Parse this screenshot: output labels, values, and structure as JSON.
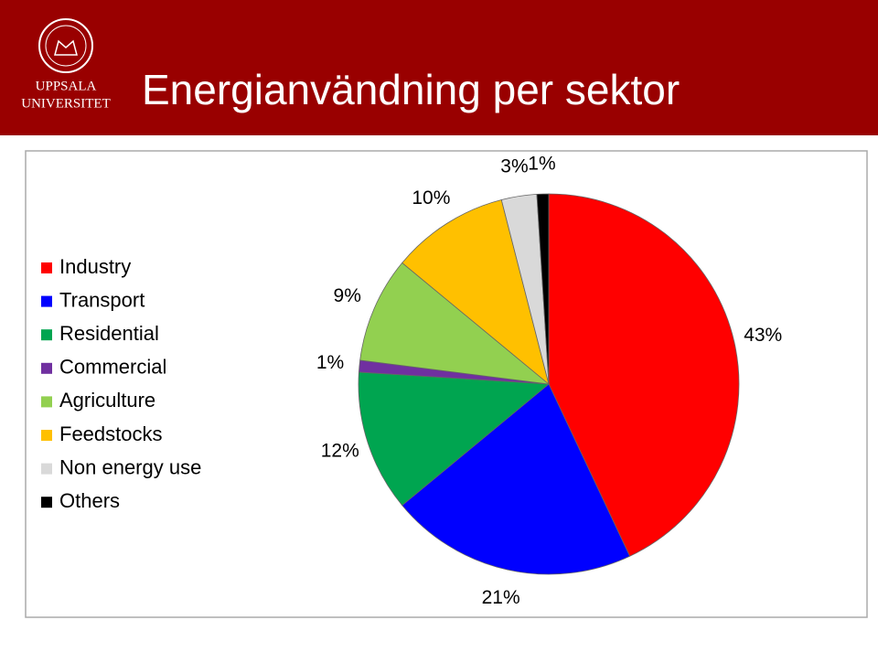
{
  "header": {
    "logo_lines": [
      "UPPSALA",
      "UNIVERSITET"
    ],
    "title": "Energianvändning per sektor"
  },
  "chart_data": {
    "type": "pie",
    "categories": [
      "Industry",
      "Transport",
      "Residential",
      "Commercial",
      "Agriculture",
      "Feedstocks",
      "Non energy use",
      "Others"
    ],
    "values": [
      43,
      21,
      12,
      1,
      9,
      10,
      3,
      1
    ],
    "value_labels": [
      "43%",
      "21%",
      "12%",
      "1%",
      "9%",
      "10%",
      "3%",
      "1%"
    ],
    "colors": [
      "#ff0000",
      "#0000ff",
      "#00a550",
      "#7030a0",
      "#92d050",
      "#ffc000",
      "#d9d9d9",
      "#000000"
    ],
    "legend": "left"
  }
}
